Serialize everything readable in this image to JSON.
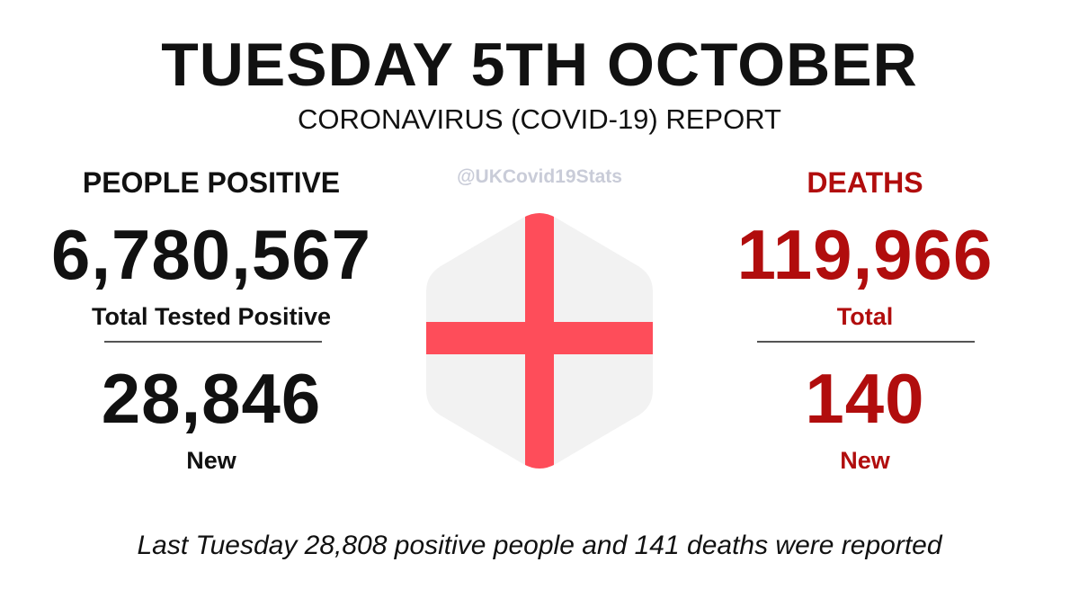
{
  "header": {
    "title": "TUESDAY 5TH OCTOBER",
    "subtitle": "CORONAVIRUS (COVID-19) REPORT"
  },
  "watermark": {
    "handle": "@UKCovid19Stats"
  },
  "positive": {
    "heading": "PEOPLE POSITIVE",
    "total_value": "6,780,567",
    "total_label": "Total Tested Positive",
    "new_value": "28,846",
    "new_label": "New"
  },
  "deaths": {
    "heading": "DEATHS",
    "total_value": "119,966",
    "total_label": "Total",
    "new_value": "140",
    "new_label": "New"
  },
  "footer": {
    "comparison": "Last Tuesday 28,808 positive people and 141 deaths were reported"
  },
  "flag": {
    "icon": "england-flag-hexagon-icon",
    "background_color": "#f2f2f2",
    "cross_color": "#fe4d5a"
  },
  "colors": {
    "text_dark": "#111111",
    "deaths_red": "#b10d0d",
    "watermark_gray": "#c9ccd8"
  }
}
